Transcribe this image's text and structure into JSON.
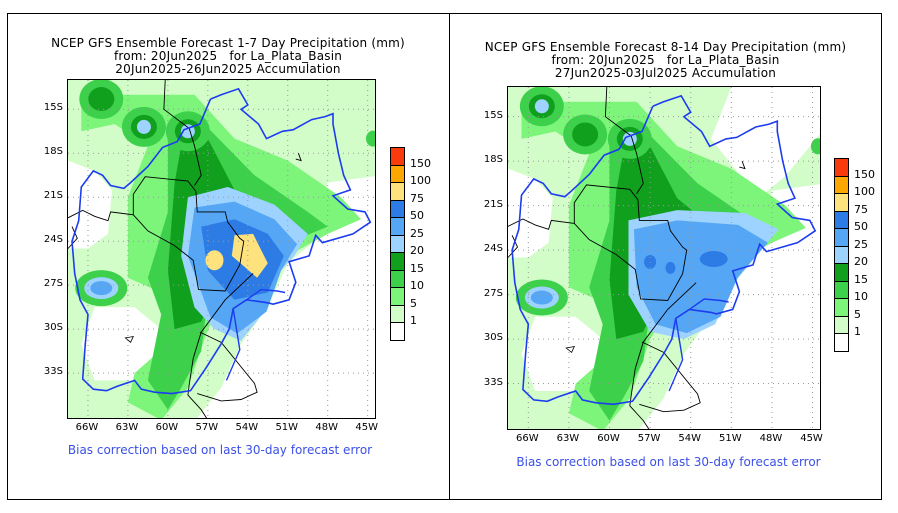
{
  "colorbar": {
    "levels": [
      "1",
      "5",
      "10",
      "15",
      "20",
      "25",
      "50",
      "75",
      "100",
      "150"
    ],
    "colors": [
      "#ffffff",
      "#d2fdc8",
      "#7cf57a",
      "#3dd04b",
      "#10a01e",
      "#9fd3ff",
      "#55a6f5",
      "#2d7ce6",
      "#fde27e",
      "#fca700",
      "#f83a0d"
    ]
  },
  "colors": {
    "river": "#1d3cf0",
    "border": "#000000",
    "grid": "#999999",
    "note": "#3b50e8"
  },
  "panels": [
    {
      "title_line1": "NCEP GFS Ensemble Forecast 1-7 Day Precipitation (mm)",
      "title_line2": "from: 20Jun2025   for La_Plata_Basin",
      "title_line3": "20Jun2025-26Jun2025 Accumulation",
      "lat_labels": [
        "15S",
        "18S",
        "21S",
        "24S",
        "27S",
        "30S",
        "33S"
      ],
      "lon_labels": [
        "66W",
        "63W",
        "60W",
        "57W",
        "54W",
        "51W",
        "48W",
        "45W"
      ],
      "note": "Bias correction based on last 30-day forecast error",
      "max_category": "75-100"
    },
    {
      "title_line1": "NCEP GFS Ensemble Forecast 8-14 Day Precipitation (mm)",
      "title_line2": "from: 20Jun2025   for La_Plata_Basin",
      "title_line3": "27Jun2025-03Jul2025 Accumulation",
      "lat_labels": [
        "15S",
        "18S",
        "21S",
        "24S",
        "27S",
        "30S",
        "33S"
      ],
      "lon_labels": [
        "66W",
        "63W",
        "60W",
        "57W",
        "54W",
        "51W",
        "48W",
        "45W"
      ],
      "note": "Bias correction based on last 30-day forecast error",
      "max_category": "50-75"
    }
  ]
}
